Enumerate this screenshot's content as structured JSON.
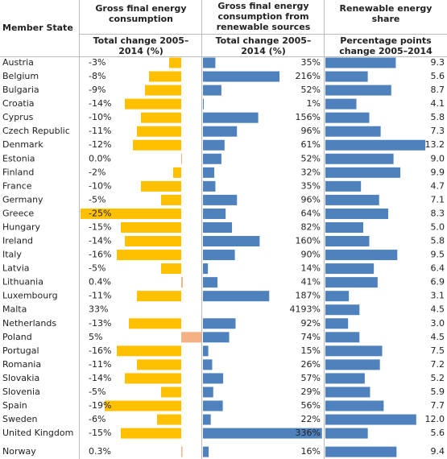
{
  "header": {
    "member_state": "Member State"
  },
  "countries": [
    "Austria",
    "Belgium",
    "Bulgaria",
    "Croatia",
    "Cyprus",
    "Czech Republic",
    "Denmark",
    "Estonia",
    "Finland",
    "France",
    "Germany",
    "Greece",
    "Hungary",
    "Ireland",
    "Italy",
    "Latvia",
    "Lithuania",
    "Luxembourg",
    "Malta",
    "Netherlands",
    "Poland",
    "Portugal",
    "Romania",
    "Slovakia",
    "Slovenia",
    "Spain",
    "Sweden",
    "United Kingdom",
    "Norway"
  ],
  "columns": [
    {
      "title": "Gross final energy consumption",
      "subtitle": "Total change 2005–2014 (%)",
      "color": "#ffc000",
      "positive_color": "#f4b183",
      "values": [
        -3,
        -8,
        -9,
        -14,
        -10,
        -11,
        -12,
        0,
        -2,
        -10,
        -5,
        -25,
        -15,
        -14,
        -16,
        -5,
        0.4,
        -11,
        33,
        -13,
        5,
        -16,
        -11,
        -14,
        -5,
        -19,
        -6,
        -15,
        0.3
      ],
      "value_labels": [
        "-3%",
        "-8%",
        "-9%",
        "-14%",
        "-10%",
        "-11%",
        "-12%",
        "0.0%",
        "-2%",
        "-10%",
        "-5%",
        "-25%",
        "-15%",
        "-14%",
        "-16%",
        "-5%",
        "0.4%",
        "-11%",
        "33%",
        "-13%",
        "5%",
        "-16%",
        "-11%",
        "-14%",
        "-5%",
        "-19%",
        "-6%",
        "-15%",
        "0.3%"
      ]
    },
    {
      "title": "Gross final energy consumption from renewable sources",
      "subtitle": "Total change 2005–2014 (%)",
      "color": "#4f81bd",
      "values": [
        35,
        216,
        52,
        1,
        156,
        96,
        61,
        52,
        32,
        35,
        96,
        64,
        82,
        160,
        90,
        14,
        41,
        187,
        4193,
        92,
        74,
        15,
        26,
        57,
        29,
        56,
        22,
        336,
        16
      ],
      "value_labels": [
        "35%",
        "216%",
        "52%",
        "1%",
        "156%",
        "96%",
        "61%",
        "52%",
        "32%",
        "35%",
        "96%",
        "64%",
        "82%",
        "160%",
        "90%",
        "14%",
        "41%",
        "187%",
        "4193%",
        "92%",
        "74%",
        "15%",
        "26%",
        "57%",
        "29%",
        "56%",
        "22%",
        "336%",
        "16%"
      ]
    },
    {
      "title": "Renewable energy share",
      "subtitle": "Percentage points change 2005–2014",
      "color": "#4f81bd",
      "values": [
        9.3,
        5.6,
        8.7,
        4.1,
        5.8,
        7.3,
        13.2,
        9.0,
        9.9,
        4.7,
        7.1,
        8.3,
        5.0,
        5.8,
        9.5,
        6.4,
        6.9,
        3.1,
        4.5,
        3.0,
        4.5,
        7.5,
        7.2,
        5.2,
        5.9,
        7.7,
        12.0,
        5.6,
        9.4
      ],
      "value_labels": [
        "9.3",
        "5.6",
        "8.7",
        "4.1",
        "5.8",
        "7.3",
        "13.2",
        "9.0",
        "9.9",
        "4.7",
        "7.1",
        "8.3",
        "5.0",
        "5.8",
        "9.5",
        "6.4",
        "6.9",
        "3.1",
        "4.5",
        "3.0",
        "4.5",
        "7.5",
        "7.2",
        "5.2",
        "5.9",
        "7.7",
        "12.0",
        "5.6",
        "9.4"
      ]
    }
  ]
}
